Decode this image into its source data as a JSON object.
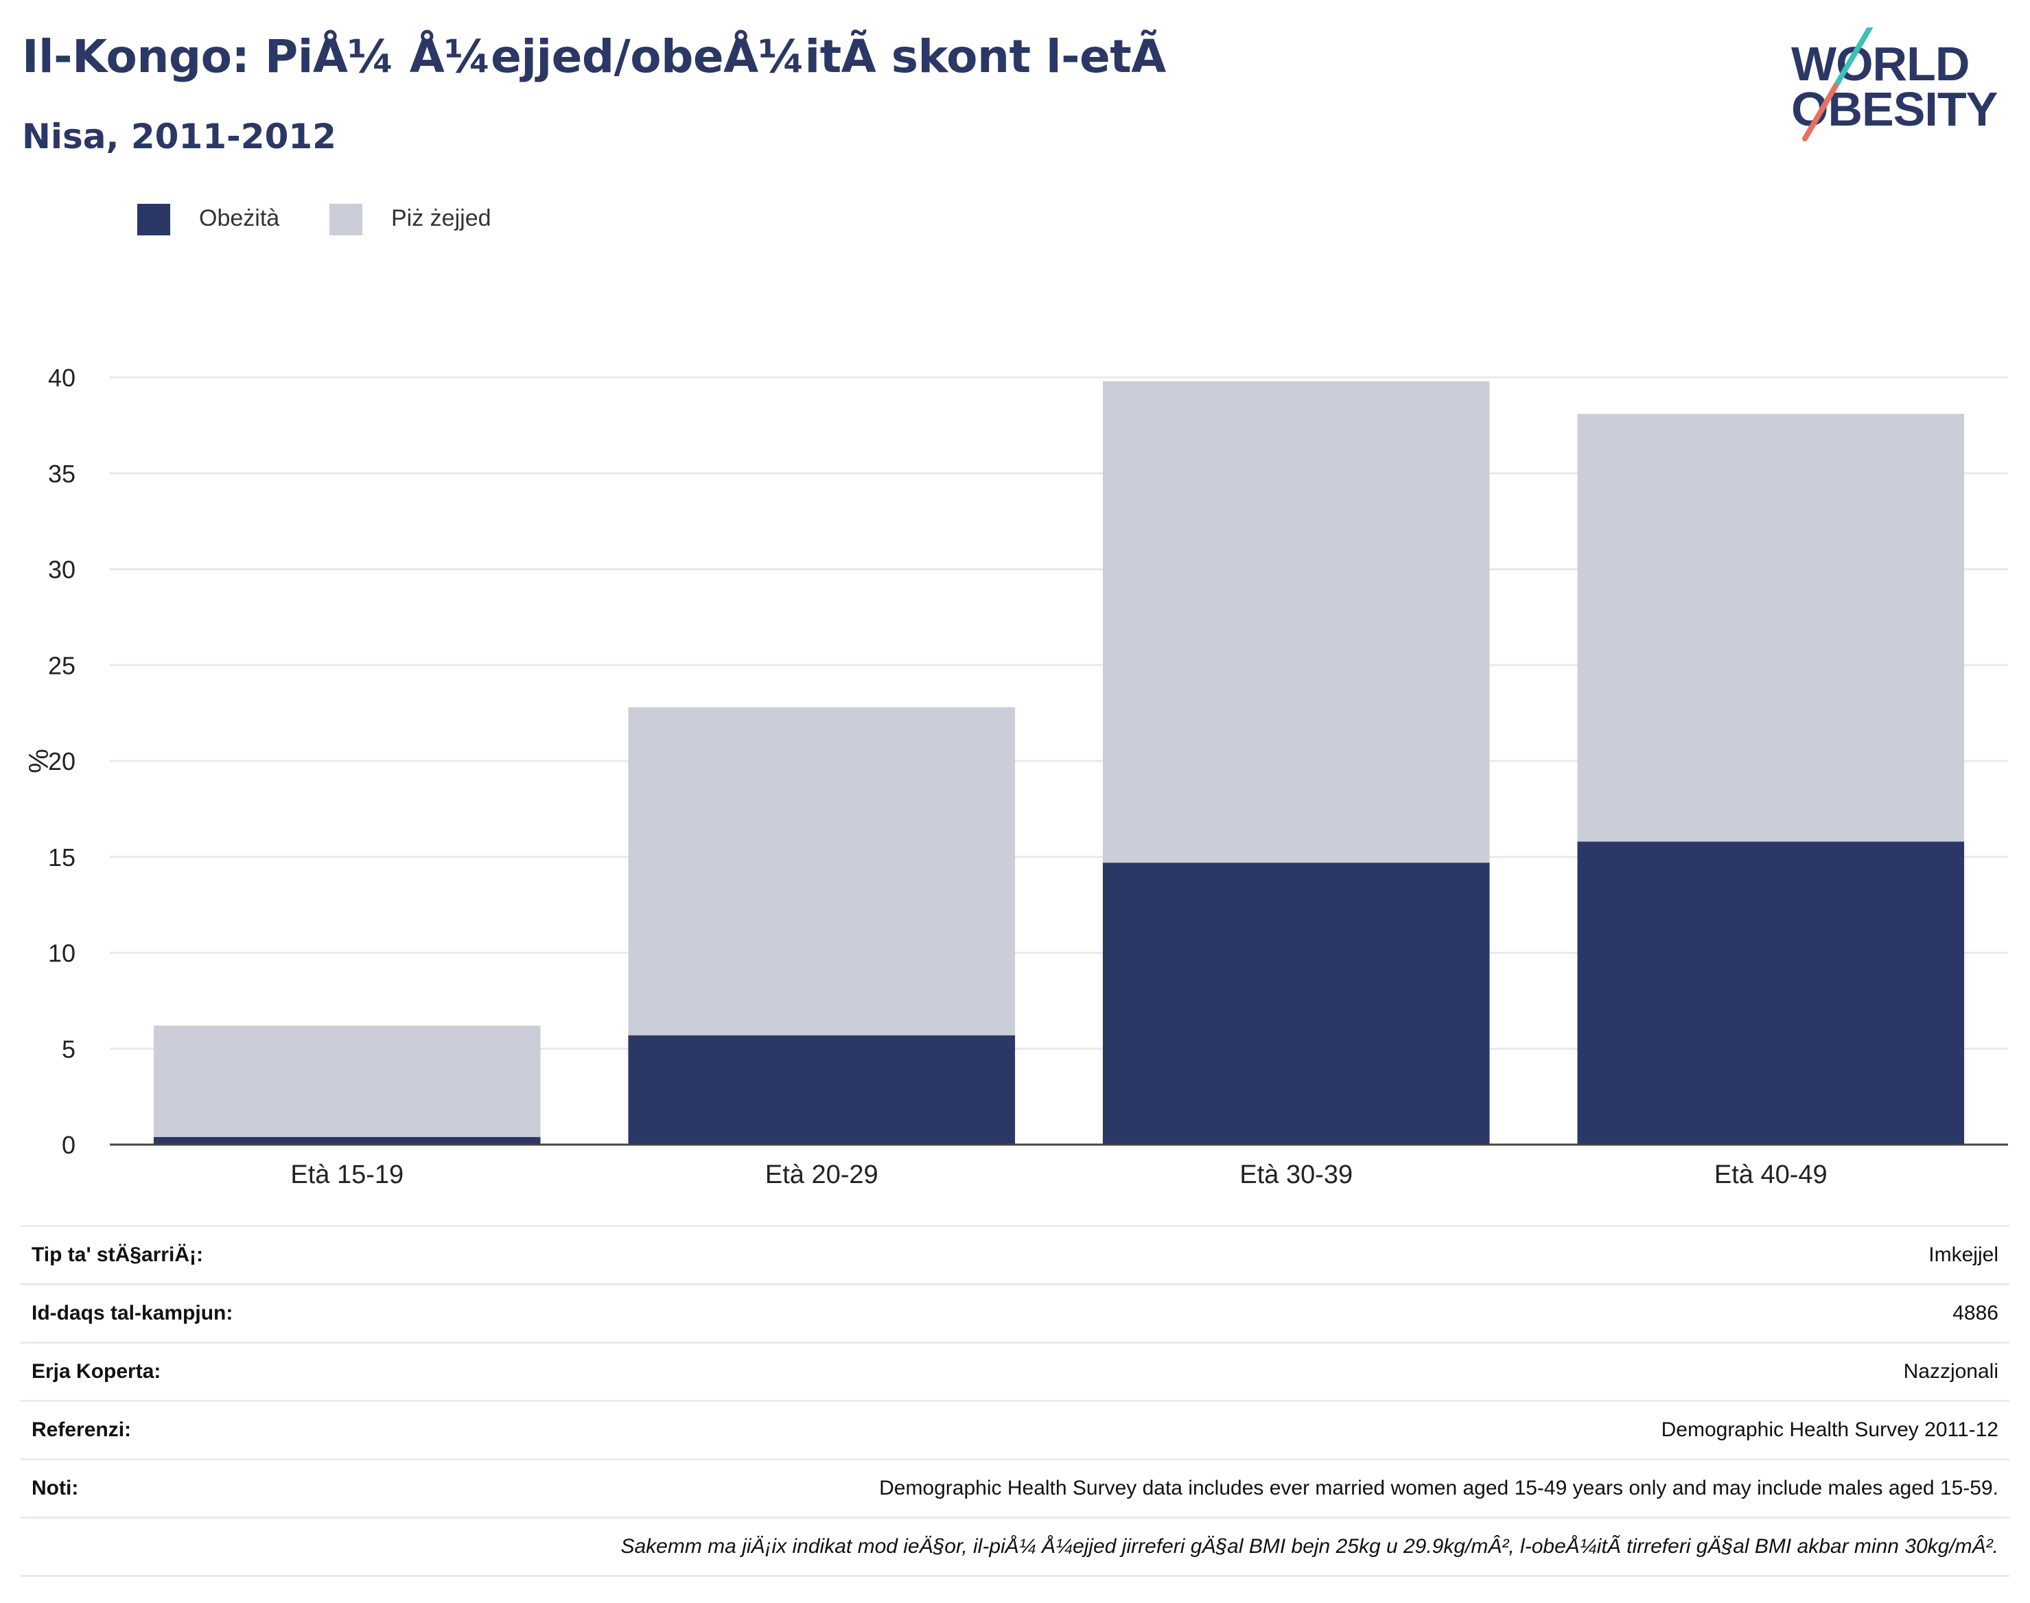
{
  "title": "Il-Kongo: PiÅ¼ Å¼ejjed/obeÅ¼itÃ  skont l-etÃ",
  "subtitle": "Nisa, 2011-2012",
  "logo": {
    "line1": "WORLD",
    "line2": "OBESITY"
  },
  "colors": {
    "obesity": "#2b3765",
    "overweight": "#cbcdd9",
    "title": "#2b3765",
    "logo_slash_top": "#3cc0b8",
    "logo_slash_bottom": "#e8705e"
  },
  "chart_data": {
    "type": "bar",
    "stacked": true,
    "categories": [
      "Età 15-19",
      "Età 20-29",
      "Età 30-39",
      "Età 40-49"
    ],
    "series": [
      {
        "name": "Obeżità",
        "values": [
          0.4,
          5.7,
          14.7,
          15.8
        ]
      },
      {
        "name": "Piż żejjed",
        "values": [
          5.8,
          17.1,
          25.1,
          22.3
        ]
      }
    ],
    "totals": [
      6.2,
      22.8,
      39.8,
      38.1
    ],
    "ylabel": "%",
    "ylim": [
      0,
      40
    ],
    "yticks": [
      0,
      5,
      10,
      15,
      20,
      25,
      30,
      35,
      40
    ],
    "grid": true,
    "legend": "top-left"
  },
  "info": [
    {
      "label": "Tip ta' stÄ§arriÄ¡:",
      "value": "Imkejjel"
    },
    {
      "label": "Id-daqs tal-kampjun:",
      "value": "4886"
    },
    {
      "label": "Erja Koperta:",
      "value": "Nazzjonali"
    },
    {
      "label": "Referenzi:",
      "value": "Demographic Health Survey 2011-12"
    },
    {
      "label": "Noti:",
      "value": "Demographic Health Survey data includes ever married women aged 15-49 years only and may include males aged 15-59."
    }
  ],
  "footnote": "Sakemm ma jiÄ¡ix indikat mod ieÄ§or, il-piÅ¼ Å¼ejjed jirreferi gÄ§al BMI bejn 25kg u 29.9kg/mÂ², l-obeÅ¼itÃ  tirreferi gÄ§al BMI akbar minn 30kg/mÂ²."
}
